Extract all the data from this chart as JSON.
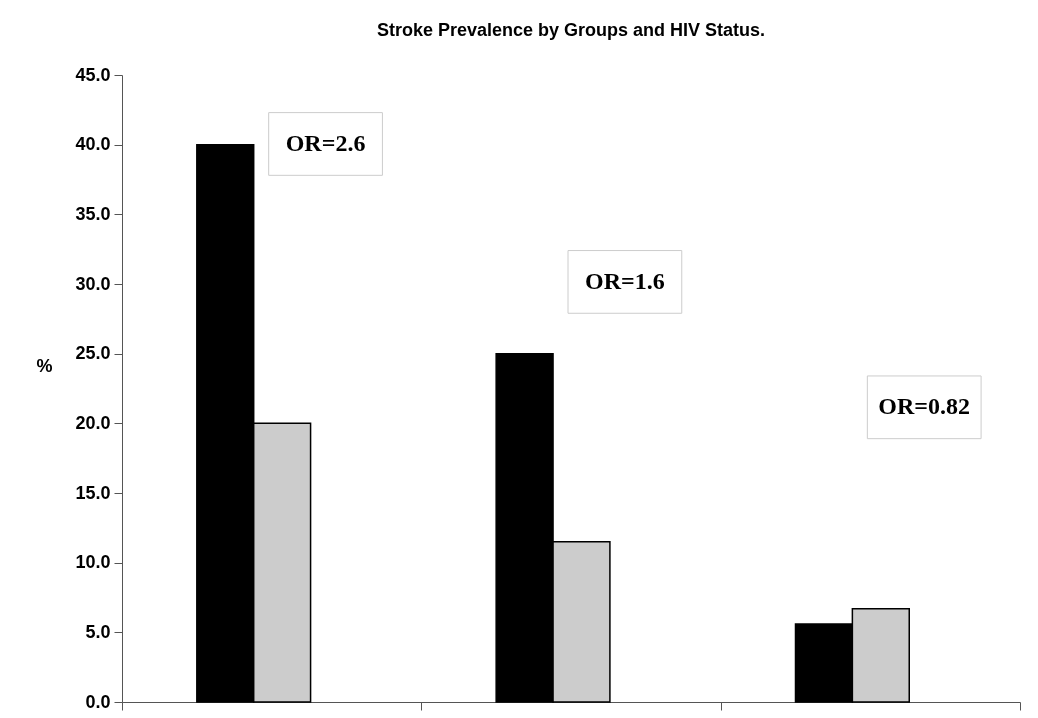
{
  "chart_data": {
    "type": "bar",
    "title": "Stroke Prevalence by Groups and HIV Status.",
    "ylabel": "%",
    "categories": [
      null,
      null,
      null
    ],
    "series": [
      {
        "color": "#000000",
        "values": [
          40.0,
          25.0,
          5.6
        ]
      },
      {
        "color": "#cccccc",
        "values": [
          20.0,
          11.5,
          6.7
        ]
      }
    ],
    "ylim": [
      0,
      45
    ],
    "yticks": [
      {
        "value": 0,
        "label": "0.0"
      },
      {
        "value": 5,
        "label": "5.0"
      },
      {
        "value": 10,
        "label": "10.0"
      },
      {
        "value": 15,
        "label": "15.0"
      },
      {
        "value": 20,
        "label": "20.0"
      },
      {
        "value": 25,
        "label": "25.0"
      },
      {
        "value": 30,
        "label": "30.0"
      },
      {
        "value": 35,
        "label": "35.0"
      },
      {
        "value": 40,
        "label": "40.0"
      },
      {
        "value": 45,
        "label": "45.0"
      }
    ],
    "annotations": [
      "OR=2.6",
      "OR=1.6",
      "OR=0.82"
    ],
    "grid": false
  }
}
